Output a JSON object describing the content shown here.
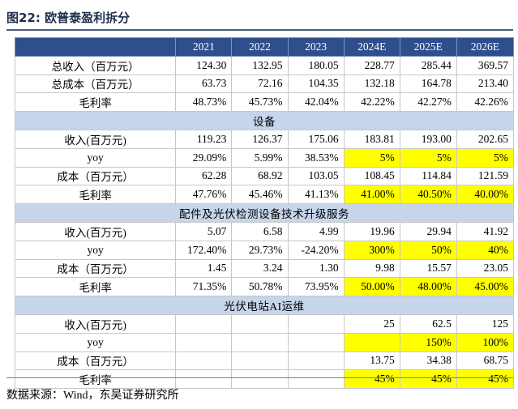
{
  "title": "图22:  欧普泰盈利拆分",
  "header": [
    "",
    "2021",
    "2022",
    "2023",
    "2024E",
    "2025E",
    "2026E"
  ],
  "rows": [
    {
      "type": "data",
      "label": "总收入（百万元）",
      "cells": [
        {
          "v": "124.30"
        },
        {
          "v": "132.95"
        },
        {
          "v": "180.05"
        },
        {
          "v": "228.77"
        },
        {
          "v": "285.44"
        },
        {
          "v": "369.57"
        }
      ]
    },
    {
      "type": "data",
      "label": "总成本（百万元）",
      "cells": [
        {
          "v": "63.73"
        },
        {
          "v": "72.16"
        },
        {
          "v": "104.35"
        },
        {
          "v": "132.18"
        },
        {
          "v": "164.78"
        },
        {
          "v": "213.40"
        }
      ]
    },
    {
      "type": "data",
      "label": "毛利率",
      "cells": [
        {
          "v": "48.73%"
        },
        {
          "v": "45.73%"
        },
        {
          "v": "42.04%"
        },
        {
          "v": "42.22%"
        },
        {
          "v": "42.27%"
        },
        {
          "v": "42.26%"
        }
      ]
    },
    {
      "type": "section",
      "label": "设备"
    },
    {
      "type": "data",
      "label": "收入(百万元)",
      "cells": [
        {
          "v": "119.23"
        },
        {
          "v": "126.37"
        },
        {
          "v": "175.06"
        },
        {
          "v": "183.81"
        },
        {
          "v": "193.00"
        },
        {
          "v": "202.65"
        }
      ]
    },
    {
      "type": "data",
      "label": "yoy",
      "cells": [
        {
          "v": "29.09%"
        },
        {
          "v": "5.99%"
        },
        {
          "v": "38.53%"
        },
        {
          "v": "5%",
          "hl": true
        },
        {
          "v": "5%",
          "hl": true
        },
        {
          "v": "5%",
          "hl": true
        }
      ]
    },
    {
      "type": "data",
      "label": "成本（百万元）",
      "cells": [
        {
          "v": "62.28"
        },
        {
          "v": "68.92"
        },
        {
          "v": "103.05"
        },
        {
          "v": "108.45"
        },
        {
          "v": "114.84"
        },
        {
          "v": "121.59"
        }
      ]
    },
    {
      "type": "data",
      "label": "毛利率",
      "cells": [
        {
          "v": "47.76%"
        },
        {
          "v": "45.46%"
        },
        {
          "v": "41.13%"
        },
        {
          "v": "41.00%",
          "hl": true
        },
        {
          "v": "40.50%",
          "hl": true
        },
        {
          "v": "40.00%",
          "hl": true
        }
      ]
    },
    {
      "type": "section",
      "label": "配件及光伏检测设备技术升级服务"
    },
    {
      "type": "data",
      "label": "收入(百万元)",
      "cells": [
        {
          "v": "5.07"
        },
        {
          "v": "6.58"
        },
        {
          "v": "4.99"
        },
        {
          "v": "19.96"
        },
        {
          "v": "29.94"
        },
        {
          "v": "41.92"
        }
      ]
    },
    {
      "type": "data",
      "label": "yoy",
      "cells": [
        {
          "v": "172.40%"
        },
        {
          "v": "29.73%"
        },
        {
          "v": "-24.20%"
        },
        {
          "v": "300%",
          "hl": true
        },
        {
          "v": "50%",
          "hl": true
        },
        {
          "v": "40%",
          "hl": true
        }
      ]
    },
    {
      "type": "data",
      "label": "成本（百万元）",
      "cells": [
        {
          "v": "1.45"
        },
        {
          "v": "3.24"
        },
        {
          "v": "1.30"
        },
        {
          "v": "9.98"
        },
        {
          "v": "15.57"
        },
        {
          "v": "23.05"
        }
      ]
    },
    {
      "type": "data",
      "label": "毛利率",
      "cells": [
        {
          "v": "71.35%"
        },
        {
          "v": "50.78%"
        },
        {
          "v": "73.95%"
        },
        {
          "v": "50.00%",
          "hl": true
        },
        {
          "v": "48.00%",
          "hl": true
        },
        {
          "v": "45.00%",
          "hl": true
        }
      ]
    },
    {
      "type": "section",
      "label": "光伏电站AI运维"
    },
    {
      "type": "data",
      "label": "收入(百万元)",
      "cells": [
        {
          "v": ""
        },
        {
          "v": ""
        },
        {
          "v": ""
        },
        {
          "v": "25"
        },
        {
          "v": "62.5"
        },
        {
          "v": "125"
        }
      ]
    },
    {
      "type": "data",
      "label": "yoy",
      "cells": [
        {
          "v": ""
        },
        {
          "v": ""
        },
        {
          "v": ""
        },
        {
          "v": "",
          "hl": true
        },
        {
          "v": "150%",
          "hl": true
        },
        {
          "v": "100%",
          "hl": true
        }
      ]
    },
    {
      "type": "data",
      "label": "成本（百万元）",
      "cells": [
        {
          "v": ""
        },
        {
          "v": ""
        },
        {
          "v": ""
        },
        {
          "v": "13.75"
        },
        {
          "v": "34.38"
        },
        {
          "v": "68.75"
        }
      ]
    },
    {
      "type": "data",
      "label": "毛利率",
      "cells": [
        {
          "v": ""
        },
        {
          "v": ""
        },
        {
          "v": ""
        },
        {
          "v": "45%",
          "hl": true
        },
        {
          "v": "45%",
          "hl": true
        },
        {
          "v": "45%",
          "hl": true
        }
      ]
    }
  ],
  "source": "数据来源：Wind，东吴证券研究所",
  "colors": {
    "header_bg": "#2f4e8c",
    "section_bg": "#c6d5ea",
    "highlight": "#ffff00",
    "title": "#1f2e4e"
  }
}
